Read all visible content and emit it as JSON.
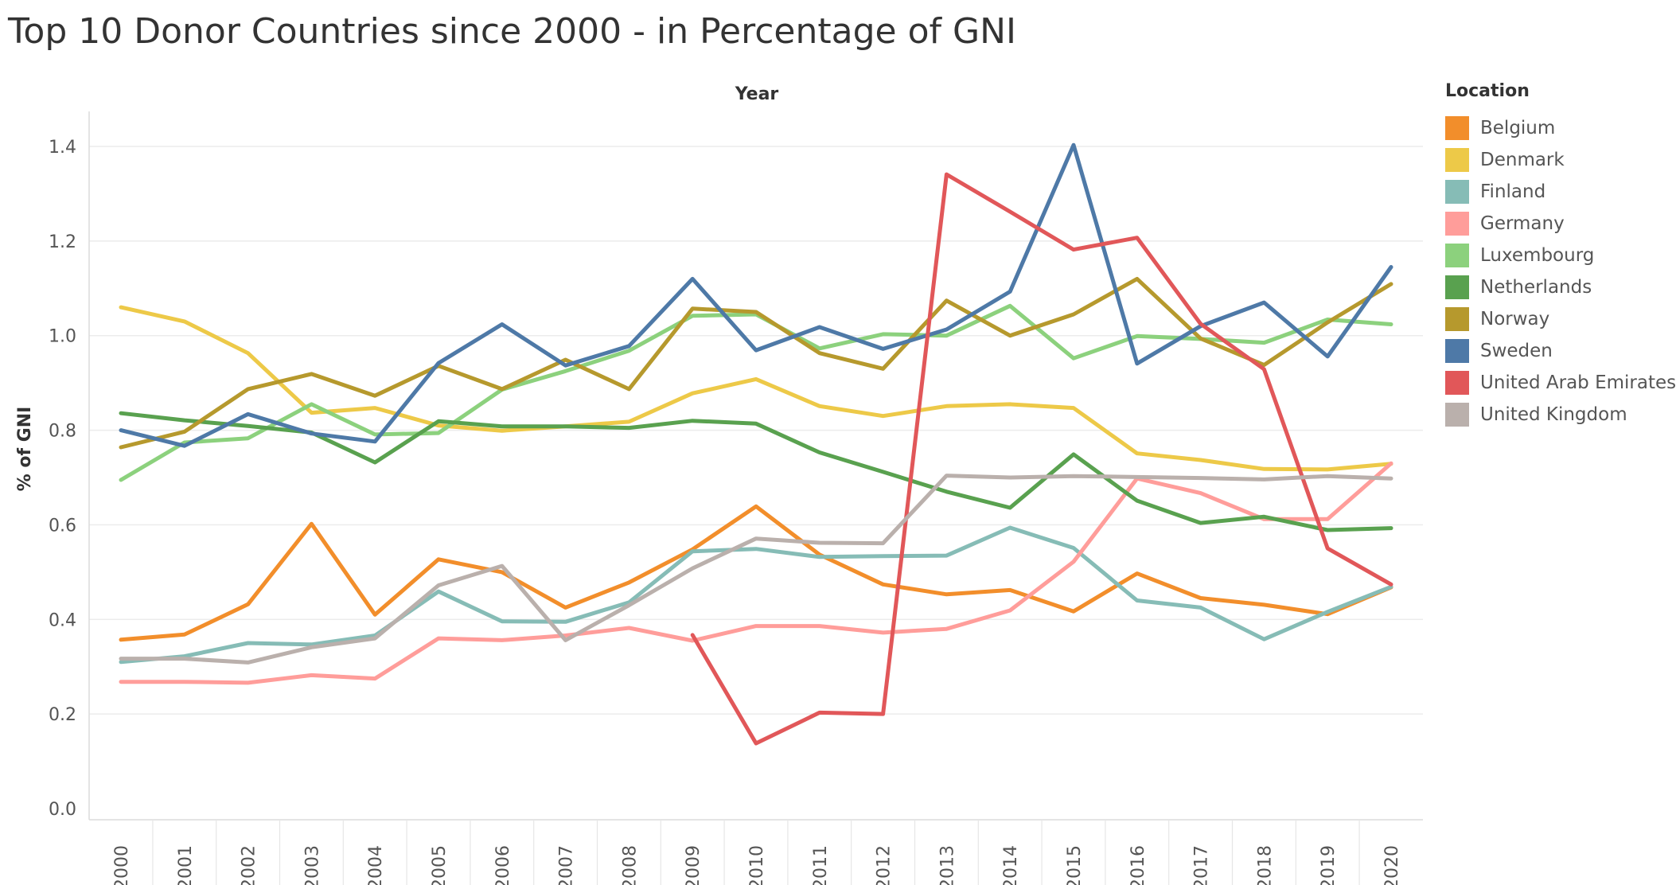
{
  "chart_data": {
    "type": "line",
    "title": "Top 10 Donor Countries since 2000 - in Percentage of GNI",
    "xlabel": "Year",
    "ylabel": "% of GNI",
    "legend_title": "Location",
    "legend_position": "right",
    "grid": true,
    "ylim": [
      0,
      1.4
    ],
    "yticks": [
      "0.0",
      "0.2",
      "0.4",
      "0.6",
      "0.8",
      "1.0",
      "1.2",
      "1.4"
    ],
    "x": [
      "2000",
      "2001",
      "2002",
      "2003",
      "2004",
      "2005",
      "2006",
      "2007",
      "2008",
      "2009",
      "2010",
      "2011",
      "2012",
      "2013",
      "2014",
      "2015",
      "2016",
      "2017",
      "2018",
      "2019",
      "2020"
    ],
    "series": [
      {
        "name": "Belgium",
        "color": "#F28E2B",
        "values": [
          0.357,
          0.368,
          0.432,
          0.602,
          0.41,
          0.527,
          0.5,
          0.425,
          0.478,
          0.548,
          0.639,
          0.537,
          0.474,
          0.453,
          0.462,
          0.417,
          0.497,
          0.445,
          0.431,
          0.411,
          0.468
        ]
      },
      {
        "name": "Denmark",
        "color": "#EDC948",
        "values": [
          1.06,
          1.03,
          0.963,
          0.837,
          0.847,
          0.81,
          0.799,
          0.808,
          0.818,
          0.878,
          0.908,
          0.851,
          0.83,
          0.851,
          0.855,
          0.847,
          0.751,
          0.737,
          0.718,
          0.717,
          0.729
        ]
      },
      {
        "name": "Finland",
        "color": "#86BCB6",
        "values": [
          0.31,
          0.322,
          0.35,
          0.347,
          0.366,
          0.459,
          0.396,
          0.395,
          0.436,
          0.544,
          0.549,
          0.532,
          0.534,
          0.535,
          0.594,
          0.551,
          0.44,
          0.425,
          0.358,
          0.416,
          0.469
        ]
      },
      {
        "name": "Germany",
        "color": "#FF9D9A",
        "values": [
          0.268,
          0.268,
          0.266,
          0.282,
          0.275,
          0.36,
          0.356,
          0.366,
          0.382,
          0.355,
          0.386,
          0.386,
          0.372,
          0.38,
          0.419,
          0.522,
          0.698,
          0.667,
          0.612,
          0.612,
          0.73
        ]
      },
      {
        "name": "Luxembourg",
        "color": "#8CD17D",
        "values": [
          0.695,
          0.774,
          0.783,
          0.855,
          0.791,
          0.794,
          0.886,
          0.925,
          0.968,
          1.042,
          1.045,
          0.973,
          1.003,
          1.0,
          1.063,
          0.952,
          0.999,
          0.993,
          0.985,
          1.034,
          1.024
        ]
      },
      {
        "name": "Netherlands",
        "color": "#59A14F",
        "values": [
          0.836,
          0.821,
          0.809,
          0.795,
          0.732,
          0.819,
          0.808,
          0.808,
          0.805,
          0.82,
          0.814,
          0.753,
          0.712,
          0.67,
          0.636,
          0.749,
          0.651,
          0.604,
          0.617,
          0.589,
          0.593
        ]
      },
      {
        "name": "Norway",
        "color": "#B6992D",
        "values": [
          0.764,
          0.797,
          0.887,
          0.919,
          0.873,
          0.936,
          0.887,
          0.949,
          0.887,
          1.057,
          1.05,
          0.963,
          0.93,
          1.074,
          1.0,
          1.045,
          1.12,
          0.994,
          0.938,
          1.028,
          1.109
        ]
      },
      {
        "name": "Sweden",
        "color": "#4E79A7",
        "values": [
          0.8,
          0.767,
          0.834,
          0.793,
          0.776,
          0.942,
          1.024,
          0.937,
          0.978,
          1.12,
          0.969,
          1.018,
          0.972,
          1.013,
          1.093,
          1.403,
          0.941,
          1.02,
          1.07,
          0.956,
          1.145
        ]
      },
      {
        "name": "United Arab Emirates",
        "color": "#E15759",
        "values": [
          null,
          null,
          null,
          null,
          null,
          null,
          null,
          null,
          null,
          0.367,
          0.138,
          0.203,
          0.2,
          1.341,
          1.262,
          1.182,
          1.207,
          1.025,
          0.929,
          0.55,
          0.474
        ]
      },
      {
        "name": "United Kingdom",
        "color": "#BAB0AC",
        "values": [
          0.317,
          0.317,
          0.309,
          0.341,
          0.36,
          0.472,
          0.513,
          0.356,
          0.43,
          0.508,
          0.571,
          0.562,
          0.561,
          0.704,
          0.7,
          0.703,
          0.701,
          0.699,
          0.696,
          0.703,
          0.698
        ]
      }
    ]
  }
}
